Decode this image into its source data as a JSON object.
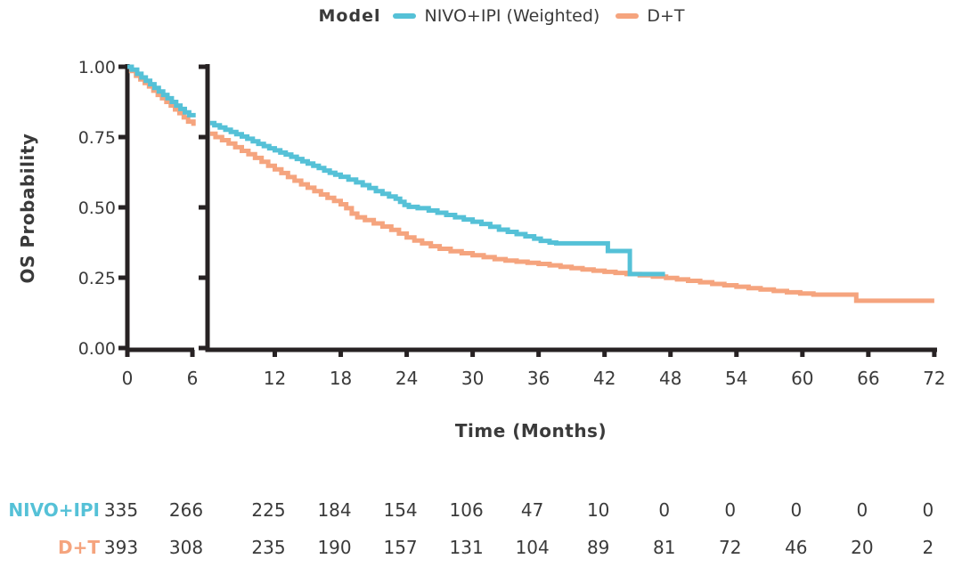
{
  "chart_data": {
    "type": "line",
    "subtype": "kaplan-meier-step-survival",
    "legend_title": "Model",
    "x_axis": {
      "label": "Time (Months)",
      "ticks": [
        0,
        6,
        12,
        18,
        24,
        30,
        36,
        42,
        48,
        54,
        60,
        66,
        72
      ],
      "range": [
        0,
        72
      ],
      "break_between": [
        6,
        7
      ]
    },
    "y_axis": {
      "label": "OS Probability",
      "tick_labels": [
        "1.00",
        "0.75",
        "0.50",
        "0.25",
        "0.00"
      ],
      "ticks": [
        1.0,
        0.75,
        0.5,
        0.25,
        0.0
      ],
      "range": [
        0,
        1
      ]
    },
    "axis_color": "#272223",
    "text_color": "#3a3a3a",
    "series": [
      {
        "name": "D+T",
        "color": "#F5A47E",
        "segments": [
          [
            [
              0,
              1
            ],
            [
              0.35,
              0.985
            ],
            [
              0.8,
              0.968
            ],
            [
              1.2,
              0.955
            ],
            [
              1.6,
              0.942
            ],
            [
              2,
              0.93
            ],
            [
              2.4,
              0.915
            ],
            [
              2.8,
              0.9
            ],
            [
              3.2,
              0.888
            ],
            [
              3.6,
              0.875
            ],
            [
              4,
              0.862
            ],
            [
              4.4,
              0.848
            ],
            [
              4.8,
              0.835
            ],
            [
              5.2,
              0.82
            ],
            [
              5.6,
              0.805
            ],
            [
              6.1,
              0.79
            ]
          ],
          [
            [
              6.12,
              0.762
            ],
            [
              6.6,
              0.75
            ],
            [
              7.2,
              0.739
            ],
            [
              7.8,
              0.727
            ],
            [
              8.4,
              0.714
            ],
            [
              9,
              0.701
            ],
            [
              9.6,
              0.689
            ],
            [
              10.2,
              0.676
            ],
            [
              10.8,
              0.662
            ],
            [
              11.4,
              0.648
            ],
            [
              12,
              0.635
            ],
            [
              12.6,
              0.622
            ],
            [
              13.2,
              0.608
            ],
            [
              13.8,
              0.595
            ],
            [
              14.4,
              0.582
            ],
            [
              15,
              0.57
            ],
            [
              15.6,
              0.558
            ],
            [
              16.2,
              0.546
            ],
            [
              16.8,
              0.534
            ],
            [
              17.4,
              0.523
            ],
            [
              18,
              0.511
            ],
            [
              18.5,
              0.497
            ],
            [
              19,
              0.478
            ],
            [
              19.5,
              0.465
            ],
            [
              20.2,
              0.455
            ],
            [
              21,
              0.443
            ],
            [
              21.8,
              0.432
            ],
            [
              22.6,
              0.42
            ],
            [
              23.3,
              0.407
            ],
            [
              24,
              0.393
            ],
            [
              24.7,
              0.382
            ],
            [
              25.4,
              0.372
            ],
            [
              26.2,
              0.362
            ],
            [
              27,
              0.353
            ],
            [
              28,
              0.344
            ],
            [
              29,
              0.337
            ],
            [
              30,
              0.33
            ],
            [
              31,
              0.323
            ],
            [
              32,
              0.316
            ],
            [
              33,
              0.311
            ],
            [
              34,
              0.307
            ],
            [
              35,
              0.303
            ],
            [
              36,
              0.299
            ],
            [
              37,
              0.294
            ],
            [
              38,
              0.289
            ],
            [
              39,
              0.284
            ],
            [
              40,
              0.279
            ],
            [
              41,
              0.275
            ],
            [
              42,
              0.271
            ],
            [
              43,
              0.267
            ],
            [
              44,
              0.263
            ],
            [
              45.2,
              0.259
            ],
            [
              46.4,
              0.254
            ],
            [
              47.6,
              0.249
            ],
            [
              48.6,
              0.244
            ],
            [
              49.6,
              0.239
            ],
            [
              50.7,
              0.234
            ],
            [
              51.8,
              0.228
            ],
            [
              52.9,
              0.223
            ],
            [
              54,
              0.218
            ],
            [
              55.1,
              0.213
            ],
            [
              56.2,
              0.208
            ],
            [
              57.4,
              0.203
            ],
            [
              58.6,
              0.198
            ],
            [
              59.8,
              0.194
            ],
            [
              61,
              0.19
            ],
            [
              64.9,
              0.168
            ],
            [
              72,
              0.168
            ]
          ]
        ]
      },
      {
        "name": "NIVO+IPI (Weighted)",
        "color": "#55C1D7",
        "segments": [
          [
            [
              0,
              1
            ],
            [
              0.4,
              0.99
            ],
            [
              0.9,
              0.975
            ],
            [
              1.3,
              0.962
            ],
            [
              1.7,
              0.95
            ],
            [
              2.1,
              0.938
            ],
            [
              2.5,
              0.925
            ],
            [
              2.9,
              0.912
            ],
            [
              3.3,
              0.9
            ],
            [
              3.7,
              0.888
            ],
            [
              4.1,
              0.875
            ],
            [
              4.5,
              0.862
            ],
            [
              4.9,
              0.85
            ],
            [
              5.3,
              0.838
            ],
            [
              5.7,
              0.828
            ],
            [
              6.1,
              0.82
            ]
          ],
          [
            [
              6.12,
              0.8
            ],
            [
              6.5,
              0.792
            ],
            [
              7,
              0.784
            ],
            [
              7.5,
              0.776
            ],
            [
              8,
              0.768
            ],
            [
              8.5,
              0.76
            ],
            [
              9,
              0.752
            ],
            [
              9.5,
              0.744
            ],
            [
              10,
              0.735
            ],
            [
              10.5,
              0.726
            ],
            [
              11,
              0.718
            ],
            [
              11.5,
              0.71
            ],
            [
              12,
              0.703
            ],
            [
              12.5,
              0.695
            ],
            [
              13,
              0.688
            ],
            [
              13.5,
              0.68
            ],
            [
              14,
              0.672
            ],
            [
              14.5,
              0.664
            ],
            [
              15,
              0.656
            ],
            [
              15.5,
              0.648
            ],
            [
              16,
              0.64
            ],
            [
              16.5,
              0.631
            ],
            [
              17,
              0.623
            ],
            [
              17.5,
              0.616
            ],
            [
              18,
              0.609
            ],
            [
              18.7,
              0.599
            ],
            [
              19.4,
              0.589
            ],
            [
              20,
              0.579
            ],
            [
              20.6,
              0.569
            ],
            [
              21.2,
              0.558
            ],
            [
              21.8,
              0.548
            ],
            [
              22.4,
              0.539
            ],
            [
              23,
              0.531
            ],
            [
              23.4,
              0.52
            ],
            [
              23.8,
              0.509
            ],
            [
              24.2,
              0.502
            ],
            [
              25,
              0.497
            ],
            [
              26,
              0.489
            ],
            [
              26.8,
              0.481
            ],
            [
              27.6,
              0.473
            ],
            [
              28.4,
              0.465
            ],
            [
              29.2,
              0.457
            ],
            [
              30,
              0.449
            ],
            [
              30.8,
              0.441
            ],
            [
              31.6,
              0.431
            ],
            [
              32.4,
              0.421
            ],
            [
              33.2,
              0.413
            ],
            [
              34,
              0.405
            ],
            [
              34.8,
              0.397
            ],
            [
              35.6,
              0.389
            ],
            [
              36.2,
              0.381
            ],
            [
              37,
              0.375
            ],
            [
              37.6,
              0.372
            ],
            [
              42.3,
              0.345
            ],
            [
              44.3,
              0.263
            ],
            [
              47.5,
              0.263
            ]
          ]
        ]
      }
    ],
    "legend_items": [
      {
        "label": "NIVO+IPI (Weighted)",
        "color": "#55C1D7"
      },
      {
        "label": "D+T",
        "color": "#F5A47E"
      }
    ]
  },
  "risk_table": {
    "rows": [
      {
        "label": "NIVO+IPI",
        "color": "#55C1D7",
        "values": [
          "335",
          "266",
          "225",
          "184",
          "154",
          "106",
          "47",
          "10",
          "0",
          "0",
          "0",
          "0",
          "0"
        ]
      },
      {
        "label": "D+T",
        "color": "#F5A47E",
        "values": [
          "393",
          "308",
          "235",
          "190",
          "157",
          "131",
          "104",
          "89",
          "81",
          "72",
          "46",
          "20",
          "2"
        ]
      }
    ]
  }
}
